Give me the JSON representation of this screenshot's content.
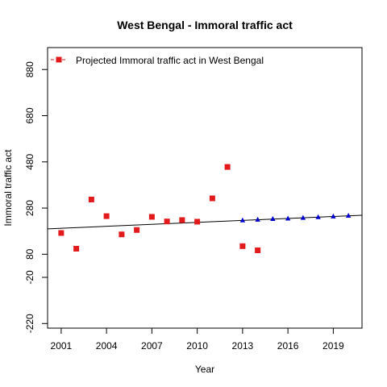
{
  "chart_data": {
    "type": "scatter",
    "title": "West Bengal  -  Immoral traffic act",
    "xlabel": "Year",
    "ylabel": "Immoral traffic act",
    "xlim": [
      2000.1,
      2020.9
    ],
    "ylim": [
      -240,
      975
    ],
    "x_ticks": [
      2001,
      2004,
      2007,
      2010,
      2013,
      2016,
      2019
    ],
    "y_ticks": [
      -220,
      -20,
      80,
      280,
      480,
      680,
      880
    ],
    "grid": false,
    "legend": {
      "position": "top-left",
      "label": "Projected  Immoral traffic act  in  West Bengal"
    },
    "colors": {
      "observed": "#e31a1c",
      "projected": "#0000cd",
      "trend": "#000000"
    },
    "series": [
      {
        "name": "",
        "marker": "square",
        "color": "#e31a1c",
        "x": [
          2001,
          2002,
          2003,
          2004,
          2005,
          2006,
          2007,
          2008,
          2009,
          2010,
          2011,
          2012,
          2013,
          2014
        ],
        "y": [
          172,
          104,
          317,
          245,
          166,
          185,
          242,
          222,
          228,
          221,
          322,
          458,
          115,
          97
        ]
      },
      {
        "name": "Projected  Immoral traffic act  in  West Bengal",
        "marker": "triangle",
        "color": "#0000cd",
        "x": [
          2013,
          2014,
          2015,
          2016,
          2017,
          2018,
          2019,
          2020
        ],
        "y": [
          227,
          230,
          233,
          235,
          238,
          241,
          244,
          247
        ]
      }
    ],
    "trend_line": {
      "x": [
        2000.1,
        2020.9
      ],
      "y": [
        190,
        249
      ]
    }
  }
}
